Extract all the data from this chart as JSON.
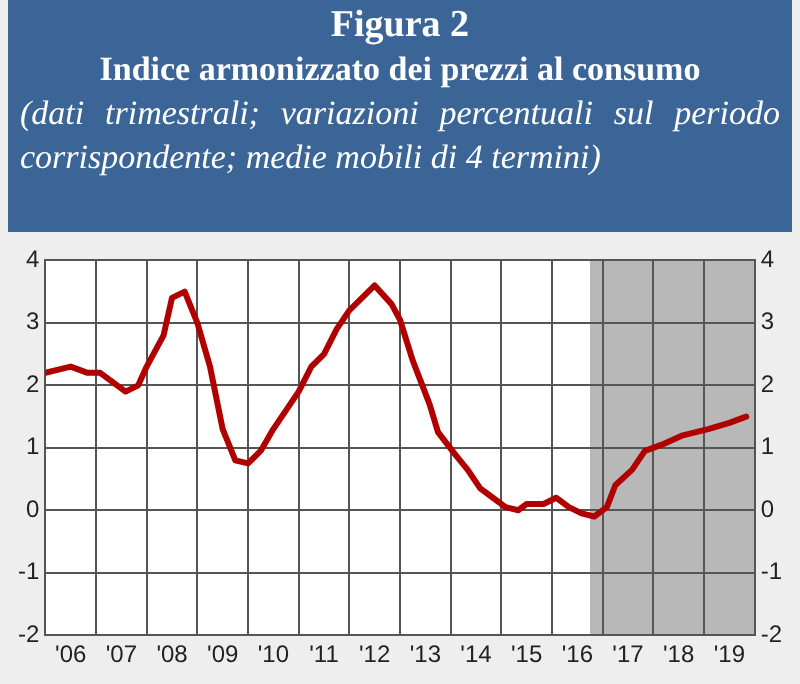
{
  "chart_data": {
    "type": "line",
    "title": "Figura 2\nIndice armonizzato dei prezzi al consumo",
    "subtitle": "(dati trimestrali; variazioni percentuali sul periodo corrispondente; medie mobili di 4 termini)",
    "series": [
      {
        "color": "#b00000",
        "x": [
          "2006-01",
          "2006-07",
          "2006-11",
          "2007-02",
          "2007-08",
          "2007-11",
          "2008-01",
          "2008-05",
          "2008-07",
          "2008-10",
          "2009-01",
          "2009-04",
          "2009-07",
          "2009-10",
          "2010-01",
          "2010-04",
          "2010-07",
          "2010-10",
          "2011-01",
          "2011-04",
          "2011-07",
          "2011-10",
          "2012-01",
          "2012-04",
          "2012-07",
          "2012-11",
          "2013-01",
          "2013-04",
          "2013-08",
          "2013-10",
          "2014-02",
          "2014-05",
          "2014-08",
          "2014-11",
          "2015-02",
          "2015-05",
          "2015-07",
          "2015-11",
          "2016-02",
          "2016-05",
          "2016-08",
          "2016-11",
          "2017-02",
          "2017-04",
          "2017-08",
          "2017-11",
          "2018-03",
          "2018-08",
          "2019-02",
          "2019-07",
          "2019-11"
        ],
        "values": [
          2.2,
          2.3,
          2.2,
          2.2,
          1.9,
          2.0,
          2.3,
          2.8,
          3.4,
          3.5,
          3.0,
          2.3,
          1.3,
          0.8,
          0.75,
          0.95,
          1.3,
          1.6,
          1.9,
          2.3,
          2.5,
          2.9,
          3.2,
          3.4,
          3.6,
          3.3,
          3.05,
          2.4,
          1.7,
          1.25,
          0.9,
          0.65,
          0.35,
          0.2,
          0.05,
          0.0,
          0.1,
          0.1,
          0.2,
          0.05,
          -0.05,
          -0.1,
          0.05,
          0.4,
          0.65,
          0.95,
          1.05,
          1.2,
          1.3,
          1.4,
          1.5
        ]
      }
    ],
    "xlim": [
      "2006-01",
      "2020-01"
    ],
    "xticks": [
      {
        "value": "2006-01",
        "label": null
      },
      {
        "value": "2006-07",
        "label": "'06"
      },
      {
        "value": "2007-01",
        "label": null
      },
      {
        "value": "2007-07",
        "label": "'07"
      },
      {
        "value": "2008-01",
        "label": null
      },
      {
        "value": "2008-07",
        "label": "'08"
      },
      {
        "value": "2009-01",
        "label": null
      },
      {
        "value": "2009-07",
        "label": "'09"
      },
      {
        "value": "2010-01",
        "label": null
      },
      {
        "value": "2010-07",
        "label": "'10"
      },
      {
        "value": "2011-01",
        "label": null
      },
      {
        "value": "2011-07",
        "label": "'11"
      },
      {
        "value": "2012-01",
        "label": null
      },
      {
        "value": "2012-07",
        "label": "'12"
      },
      {
        "value": "2013-01",
        "label": null
      },
      {
        "value": "2013-07",
        "label": "'13"
      },
      {
        "value": "2014-01",
        "label": null
      },
      {
        "value": "2014-07",
        "label": "'14"
      },
      {
        "value": "2015-01",
        "label": null
      },
      {
        "value": "2015-07",
        "label": "'15"
      },
      {
        "value": "2016-01",
        "label": null
      },
      {
        "value": "2016-07",
        "label": "'16"
      },
      {
        "value": "2017-01",
        "label": null
      },
      {
        "value": "2017-07",
        "label": "'17"
      },
      {
        "value": "2018-01",
        "label": null
      },
      {
        "value": "2018-07",
        "label": "'18"
      },
      {
        "value": "2019-01",
        "label": null
      },
      {
        "value": "2019-07",
        "label": "'19"
      },
      {
        "value": "2020-01",
        "label": null
      }
    ],
    "ylim": [
      -2,
      4
    ],
    "yticks": [
      -2,
      -1,
      0,
      1,
      2,
      3,
      4
    ],
    "y2lim": [
      -2,
      4
    ],
    "y2ticks": [
      -2,
      -1,
      0,
      1,
      2,
      3,
      4
    ],
    "bands": [
      {
        "axis": "x",
        "from": "2016-10",
        "to": "2020-01",
        "color": "#b8b8b8"
      }
    ],
    "grid": true,
    "legend": false,
    "marker": "none",
    "line_style": "solid"
  }
}
